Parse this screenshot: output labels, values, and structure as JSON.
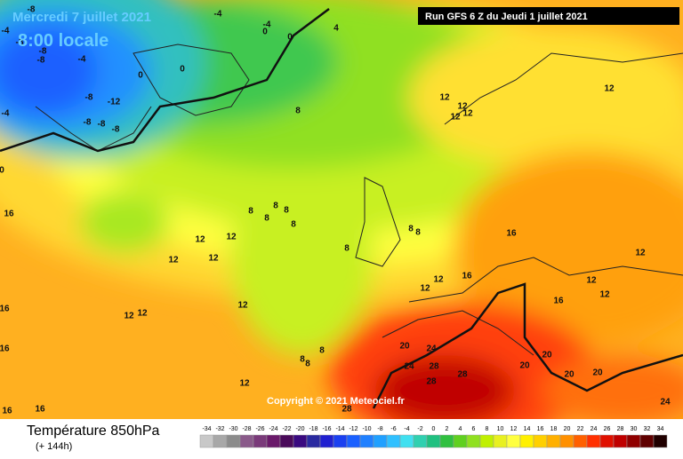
{
  "header": {
    "date": "Mercredi 7 juillet 2021",
    "time": "8:00 locale",
    "run": "Run GFS 6 Z du Jeudi 1 juillet 2021"
  },
  "map": {
    "copyright": "Copyright © 2021 Meteociel.fr",
    "labels": [
      "-8",
      "-4",
      "-8",
      "-8",
      "-8",
      "-4",
      "-12",
      "-4",
      "-8",
      "-8",
      "-8",
      "-8",
      "-4",
      "-4",
      "0",
      "0",
      "4",
      "0",
      "0",
      "0",
      "12",
      "12",
      "12",
      "12",
      "12",
      "8",
      "8",
      "8",
      "8",
      "8",
      "8",
      "8",
      "8",
      "8",
      "12",
      "12",
      "12",
      "12",
      "12",
      "12",
      "12",
      "12",
      "12",
      "16",
      "16",
      "16",
      "12",
      "12",
      "12",
      "16",
      "16",
      "16",
      "16",
      "16",
      "12",
      "8",
      "8",
      "8",
      "20",
      "24",
      "24",
      "28",
      "28",
      "28",
      "20",
      "20",
      "20",
      "20",
      "24",
      "28"
    ]
  },
  "legend": {
    "title": "Température 850hPa",
    "lead": "(+ 144h)",
    "labels": [
      -34,
      -32,
      -30,
      -28,
      -26,
      -24,
      -22,
      -20,
      -18,
      -16,
      -14,
      -12,
      -10,
      -8,
      -6,
      -4,
      -2,
      0,
      2,
      4,
      6,
      8,
      10,
      12,
      14,
      16,
      18,
      20,
      22,
      24,
      26,
      28,
      30,
      32,
      34
    ],
    "colors": [
      "#c8c8c8",
      "#a8a8a8",
      "#8c8c8c",
      "#8a5a8a",
      "#7a3a7a",
      "#6a1a6a",
      "#4a0a5a",
      "#3a0a80",
      "#2a2aa0",
      "#2020d0",
      "#1a40f0",
      "#1a60ff",
      "#2080ff",
      "#20a0ff",
      "#30c0ff",
      "#40e0f0",
      "#30d0b0",
      "#20c080",
      "#30c040",
      "#60d020",
      "#90e020",
      "#c0f000",
      "#e8f020",
      "#ffff40",
      "#fff000",
      "#ffd000",
      "#ffb000",
      "#ff9000",
      "#ff6000",
      "#ff3000",
      "#e01000",
      "#c00000",
      "#900000",
      "#600000",
      "#200000"
    ]
  }
}
